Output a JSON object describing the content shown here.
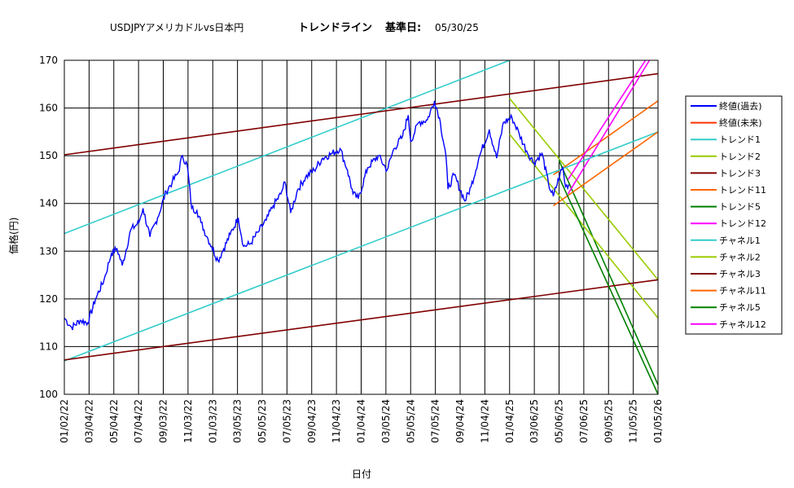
{
  "chart_data": {
    "type": "line",
    "title_left": "USDJPYアメリカドルvs日本円",
    "title_center": "トレンドライン",
    "title_base_label": "基準日:",
    "title_base_date": "05/30/25",
    "xlabel": "日付",
    "ylabel": "価格(円)",
    "ylim": [
      100,
      170
    ],
    "yticks": [
      100,
      110,
      120,
      130,
      140,
      150,
      160,
      170
    ],
    "xlim": [
      "2022-01-02",
      "2026-01-05"
    ],
    "xticks": [
      "01/02/22",
      "03/04/22",
      "05/04/22",
      "07/04/22",
      "09/03/22",
      "11/03/22",
      "01/03/23",
      "03/05/23",
      "05/05/23",
      "07/05/23",
      "09/04/23",
      "11/04/23",
      "01/04/24",
      "03/05/24",
      "05/05/24",
      "07/05/24",
      "09/04/24",
      "11/04/24",
      "01/04/25",
      "03/06/25",
      "05/06/25",
      "07/06/25",
      "09/05/25",
      "11/05/25",
      "01/05/26"
    ],
    "grid": true,
    "legend_position": "right",
    "close_series": {
      "name": "終値(過去)",
      "color": "#0000ff",
      "points": [
        [
          "2022-01-02",
          116.0
        ],
        [
          "2022-01-20",
          114.0
        ],
        [
          "2022-02-10",
          115.5
        ],
        [
          "2022-03-01",
          115.0
        ],
        [
          "2022-03-20",
          120.0
        ],
        [
          "2022-04-10",
          124.0
        ],
        [
          "2022-04-28",
          129.5
        ],
        [
          "2022-05-12",
          130.5
        ],
        [
          "2022-05-25",
          127.0
        ],
        [
          "2022-06-15",
          134.5
        ],
        [
          "2022-07-05",
          136.0
        ],
        [
          "2022-07-15",
          139.0
        ],
        [
          "2022-08-01",
          133.0
        ],
        [
          "2022-08-20",
          137.0
        ],
        [
          "2022-09-10",
          142.5
        ],
        [
          "2022-09-25",
          144.5
        ],
        [
          "2022-10-10",
          146.5
        ],
        [
          "2022-10-20",
          150.0
        ],
        [
          "2022-11-01",
          148.0
        ],
        [
          "2022-11-12",
          139.0
        ],
        [
          "2022-11-25",
          138.5
        ],
        [
          "2022-12-05",
          136.0
        ],
        [
          "2022-12-20",
          133.0
        ],
        [
          "2022-12-31",
          131.0
        ],
        [
          "2023-01-16",
          128.0
        ],
        [
          "2023-01-30",
          130.5
        ],
        [
          "2023-02-15",
          133.5
        ],
        [
          "2023-03-07",
          137.0
        ],
        [
          "2023-03-20",
          131.0
        ],
        [
          "2023-04-05",
          131.5
        ],
        [
          "2023-04-25",
          134.0
        ],
        [
          "2023-05-15",
          136.5
        ],
        [
          "2023-06-01",
          139.5
        ],
        [
          "2023-06-20",
          142.0
        ],
        [
          "2023-06-30",
          144.5
        ],
        [
          "2023-07-14",
          138.0
        ],
        [
          "2023-08-01",
          143.0
        ],
        [
          "2023-08-20",
          145.5
        ],
        [
          "2023-09-10",
          147.0
        ],
        [
          "2023-10-01",
          149.5
        ],
        [
          "2023-10-25",
          150.5
        ],
        [
          "2023-11-13",
          151.5
        ],
        [
          "2023-12-01",
          147.0
        ],
        [
          "2023-12-15",
          142.0
        ],
        [
          "2023-12-28",
          141.0
        ],
        [
          "2024-01-20",
          147.5
        ],
        [
          "2024-02-15",
          150.0
        ],
        [
          "2024-03-08",
          147.0
        ],
        [
          "2024-03-25",
          151.5
        ],
        [
          "2024-04-15",
          154.0
        ],
        [
          "2024-04-29",
          158.5
        ],
        [
          "2024-05-05",
          153.0
        ],
        [
          "2024-05-25",
          157.0
        ],
        [
          "2024-06-15",
          157.5
        ],
        [
          "2024-07-03",
          161.5
        ],
        [
          "2024-07-15",
          158.0
        ],
        [
          "2024-07-31",
          150.0
        ],
        [
          "2024-08-05",
          143.0
        ],
        [
          "2024-08-20",
          146.0
        ],
        [
          "2024-09-16",
          140.5
        ],
        [
          "2024-10-01",
          143.5
        ],
        [
          "2024-10-20",
          149.5
        ],
        [
          "2024-11-15",
          155.5
        ],
        [
          "2024-12-03",
          149.5
        ],
        [
          "2024-12-20",
          157.0
        ],
        [
          "2025-01-10",
          158.0
        ],
        [
          "2025-01-28",
          154.5
        ],
        [
          "2025-02-15",
          151.0
        ],
        [
          "2025-03-05",
          148.5
        ],
        [
          "2025-03-25",
          150.5
        ],
        [
          "2025-04-10",
          144.0
        ],
        [
          "2025-04-22",
          141.5
        ],
        [
          "2025-05-08",
          146.0
        ],
        [
          "2025-05-15",
          147.5
        ],
        [
          "2025-05-22",
          143.5
        ],
        [
          "2025-05-30",
          144.0
        ]
      ]
    },
    "lines": [
      {
        "name": "トレンド1",
        "color": "#33cccc",
        "x": [
          "2022-01-02",
          "2025-01-04"
        ],
        "y": [
          133.7,
          170.0
        ]
      },
      {
        "name": "トレンド2",
        "color": "#99cc00",
        "x": [
          "2025-01-04",
          "2026-01-05"
        ],
        "y": [
          162.0,
          124.0
        ]
      },
      {
        "name": "トレンド3",
        "color": "#800000",
        "x": [
          "2022-01-02",
          "2026-01-05"
        ],
        "y": [
          150.2,
          167.2
        ]
      },
      {
        "name": "トレンド11",
        "color": "#ff6600",
        "x": [
          "2025-04-22",
          "2026-01-05"
        ],
        "y": [
          146.0,
          161.5
        ]
      },
      {
        "name": "トレンド5",
        "color": "#008000",
        "x": [
          "2025-05-06",
          "2026-01-05"
        ],
        "y": [
          149.0,
          102.0
        ]
      },
      {
        "name": "トレンド12",
        "color": "#ff00ff",
        "x": [
          "2025-05-28",
          "2025-12-15"
        ],
        "y": [
          142.0,
          170.0
        ]
      },
      {
        "name": "チャネル1",
        "color": "#33cccc",
        "x": [
          "2022-01-02",
          "2026-01-05"
        ],
        "y": [
          107.0,
          155.0
        ]
      },
      {
        "name": "チャネル2",
        "color": "#99cc00",
        "x": [
          "2025-01-04",
          "2026-01-05"
        ],
        "y": [
          154.5,
          116.0
        ]
      },
      {
        "name": "チャネル3",
        "color": "#800000",
        "x": [
          "2022-01-02",
          "2026-01-05"
        ],
        "y": [
          107.2,
          124.0
        ]
      },
      {
        "name": "チャネル11",
        "color": "#ff6600",
        "x": [
          "2025-04-22",
          "2026-01-05"
        ],
        "y": [
          139.5,
          155.0
        ]
      },
      {
        "name": "チャネル5",
        "color": "#008000",
        "x": [
          "2025-05-06",
          "2026-01-05"
        ],
        "y": [
          145.5,
          100.0
        ]
      },
      {
        "name": "チャネル12",
        "color": "#ff00ff",
        "x": [
          "2025-05-28",
          "2025-12-05"
        ],
        "y": [
          145.0,
          170.0
        ]
      }
    ],
    "legend": [
      {
        "label": "終値(過去)",
        "color": "#0000ff"
      },
      {
        "label": "終値(未来)",
        "color": "#ff3300"
      },
      {
        "label": "トレンド1",
        "color": "#33cccc"
      },
      {
        "label": "トレンド2",
        "color": "#99cc00"
      },
      {
        "label": "トレンド3",
        "color": "#800000"
      },
      {
        "label": "トレンド11",
        "color": "#ff6600"
      },
      {
        "label": "トレンド5",
        "color": "#008000"
      },
      {
        "label": "トレンド12",
        "color": "#ff00ff"
      },
      {
        "label": "チャネル1",
        "color": "#33cccc"
      },
      {
        "label": "チャネル2",
        "color": "#99cc00"
      },
      {
        "label": "チャネル3",
        "color": "#800000"
      },
      {
        "label": "チャネル11",
        "color": "#ff6600"
      },
      {
        "label": "チャネル5",
        "color": "#008000"
      },
      {
        "label": "チャネル12",
        "color": "#ff00ff"
      }
    ]
  }
}
